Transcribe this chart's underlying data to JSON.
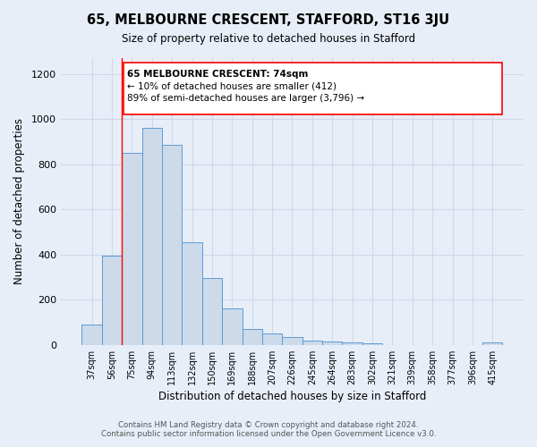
{
  "title": "65, MELBOURNE CRESCENT, STAFFORD, ST16 3JU",
  "subtitle": "Size of property relative to detached houses in Stafford",
  "xlabel": "Distribution of detached houses by size in Stafford",
  "ylabel": "Number of detached properties",
  "bar_labels": [
    "37sqm",
    "56sqm",
    "75sqm",
    "94sqm",
    "113sqm",
    "132sqm",
    "150sqm",
    "169sqm",
    "188sqm",
    "207sqm",
    "226sqm",
    "245sqm",
    "264sqm",
    "283sqm",
    "302sqm",
    "321sqm",
    "339sqm",
    "358sqm",
    "377sqm",
    "396sqm",
    "415sqm"
  ],
  "bar_values": [
    90,
    395,
    850,
    960,
    885,
    455,
    295,
    160,
    70,
    52,
    35,
    20,
    15,
    10,
    8,
    0,
    0,
    0,
    0,
    0,
    10
  ],
  "bar_color": "#ccdaea",
  "bar_edge_color": "#5b9bd5",
  "annotation_line1": "65 MELBOURNE CRESCENT: 74sqm",
  "annotation_line2": "← 10% of detached houses are smaller (412)",
  "annotation_line3": "89% of semi-detached houses are larger (3,796) →",
  "footer1": "Contains HM Land Registry data © Crown copyright and database right 2024.",
  "footer2": "Contains public sector information licensed under the Open Government Licence v3.0.",
  "ylim": [
    0,
    1270
  ],
  "yticks": [
    0,
    200,
    400,
    600,
    800,
    1000,
    1200
  ],
  "grid_color": "#d0d8e8",
  "background_color": "#e8eef8",
  "red_line_index": 1.5
}
